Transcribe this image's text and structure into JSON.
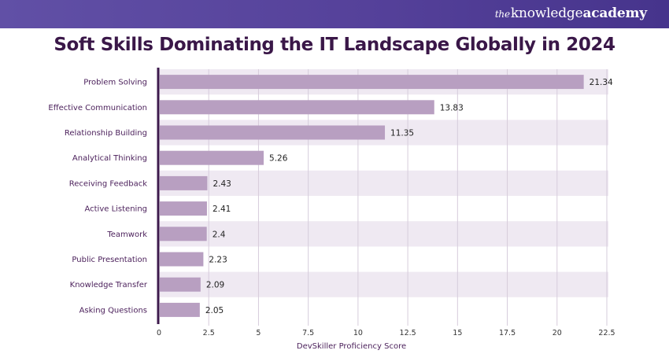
{
  "header": {
    "brand_the": "the",
    "brand_knowledge": "knowledge",
    "brand_academy": "academy"
  },
  "chart_data": {
    "type": "bar",
    "orientation": "horizontal",
    "title": "Soft Skills Dominating the IT Landscape Globally in 2024",
    "xlabel": "DevSkiller Proficiency Score",
    "ylabel": "",
    "categories": [
      "Problem Solving",
      "Effective Communication",
      "Relationship Building",
      "Analytical Thinking",
      "Receiving Feedback",
      "Active Listening",
      "Teamwork",
      "Public Presentation",
      "Knowledge Transfer",
      "Asking Questions"
    ],
    "values": [
      21.34,
      13.83,
      11.35,
      5.26,
      2.43,
      2.41,
      2.4,
      2.23,
      2.09,
      2.05
    ],
    "value_labels": [
      "21.34",
      "13.83",
      "11.35",
      "5.26",
      "2.43",
      "2.41",
      "2.4",
      "2.23",
      "2.09",
      "2.05"
    ],
    "xlim": [
      0,
      22.5
    ],
    "xticks": [
      0,
      2.5,
      5,
      7.5,
      10,
      12.5,
      15,
      17.5,
      20,
      22.5
    ],
    "xtick_labels": [
      "0",
      "2.5",
      "5",
      "7.5",
      "10",
      "12.5",
      "15",
      "17.5",
      "20",
      "22.5"
    ],
    "grid": "vertical",
    "legend": "none",
    "colors": {
      "bar": "#b89fc1",
      "band": "#efe9f2",
      "grid": "#d6ccdb",
      "axis": "#3d1a4d",
      "title": "#3a1748"
    }
  }
}
